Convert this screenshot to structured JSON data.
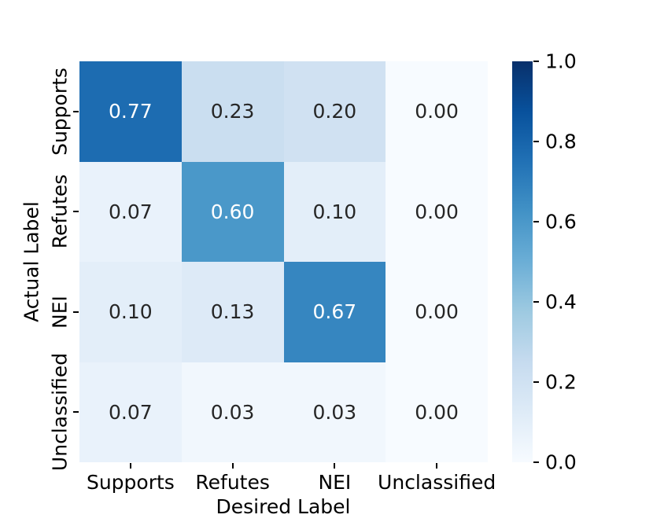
{
  "figure": {
    "background": "#ffffff",
    "text_color": "#000000"
  },
  "chart_data": {
    "type": "heatmap",
    "title": "",
    "xlabel": "Desired Label",
    "ylabel": "Actual Label",
    "x_categories": [
      "Supports",
      "Refutes",
      "NEI",
      "Unclassified"
    ],
    "y_categories": [
      "Supports",
      "Refutes",
      "NEI",
      "Unclassified"
    ],
    "values": [
      [
        0.77,
        0.23,
        0.2,
        0.0
      ],
      [
        0.07,
        0.6,
        0.1,
        0.0
      ],
      [
        0.1,
        0.13,
        0.67,
        0.0
      ],
      [
        0.07,
        0.03,
        0.03,
        0.0
      ]
    ],
    "vmin": 0.0,
    "vmax": 1.0,
    "annotation_decimals": 2,
    "annotation_text_dark": "#262626",
    "annotation_text_light": "#ffffff",
    "luminance_threshold": 0.408,
    "colormap": "Blues",
    "colormap_anchors": [
      {
        "pos": 0.0,
        "color": "#f7fbff"
      },
      {
        "pos": 0.125,
        "color": "#deebf7"
      },
      {
        "pos": 0.25,
        "color": "#c6dbef"
      },
      {
        "pos": 0.375,
        "color": "#9ecae1"
      },
      {
        "pos": 0.5,
        "color": "#6baed6"
      },
      {
        "pos": 0.625,
        "color": "#4292c6"
      },
      {
        "pos": 0.75,
        "color": "#2171b5"
      },
      {
        "pos": 0.875,
        "color": "#08519c"
      },
      {
        "pos": 1.0,
        "color": "#08306b"
      }
    ],
    "colorbar_ticks": [
      1.0,
      0.8,
      0.6,
      0.4,
      0.2,
      0.0
    ],
    "colorbar_tick_decimals": 1,
    "colorbar_position": "right",
    "grid": false
  }
}
